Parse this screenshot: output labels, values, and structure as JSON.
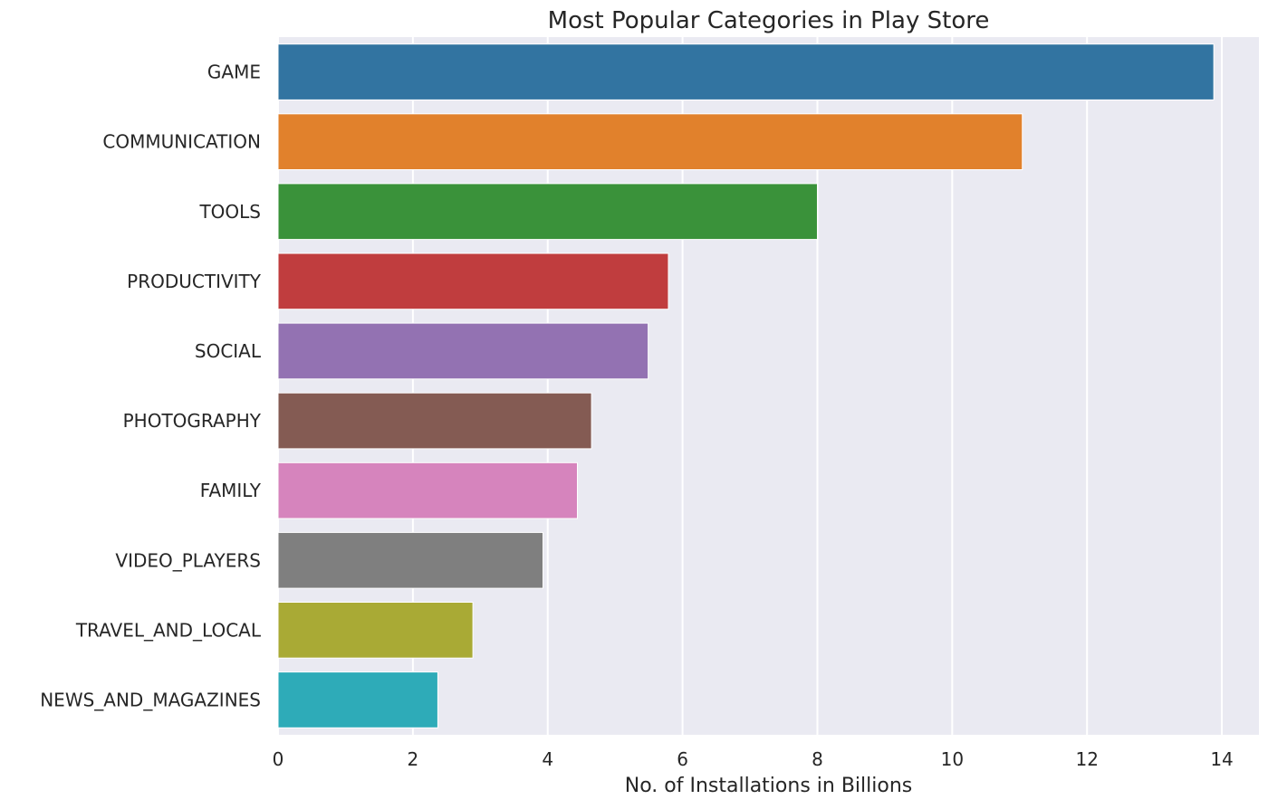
{
  "chart_data": {
    "type": "bar",
    "orientation": "horizontal",
    "title": "Most Popular Categories in Play Store",
    "xlabel": "No. of Installations in Billions",
    "ylabel": "",
    "xlim": [
      0,
      14.55
    ],
    "xticks": [
      0,
      2,
      4,
      6,
      8,
      10,
      12,
      14
    ],
    "grid": true,
    "categories": [
      "GAME",
      "COMMUNICATION",
      "TOOLS",
      "PRODUCTIVITY",
      "SOCIAL",
      "PHOTOGRAPHY",
      "FAMILY",
      "VIDEO_PLAYERS",
      "TRAVEL_AND_LOCAL",
      "NEWS_AND_MAGAZINES"
    ],
    "values": [
      13.88,
      11.04,
      8.0,
      5.79,
      5.49,
      4.65,
      4.44,
      3.93,
      2.89,
      2.37
    ],
    "colors": [
      "#3274a1",
      "#e1812c",
      "#3a923a",
      "#c03d3e",
      "#9372b2",
      "#845b53",
      "#d684bd",
      "#7f7f7f",
      "#a9aa35",
      "#2eabb8"
    ],
    "background": "#eaeaf2",
    "grid_color": "#ffffff"
  }
}
